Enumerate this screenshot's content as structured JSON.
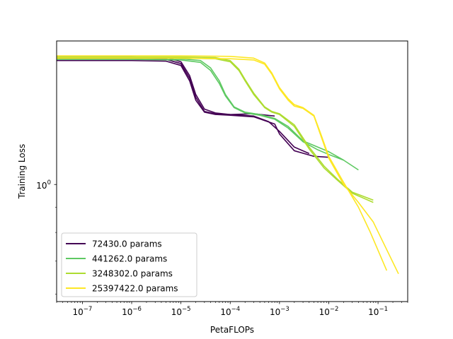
{
  "chart_data": {
    "type": "line",
    "xlabel": "PetaFLOPs",
    "ylabel": "Training Loss",
    "xscale": "log",
    "yscale": "log",
    "xlim": [
      3e-08,
      0.4
    ],
    "ylim": [
      0.58,
      1.95
    ],
    "grid": false,
    "legend_position": "lower-left",
    "x_ticks": [
      {
        "value": 1e-07,
        "base": "10",
        "exp": "−7"
      },
      {
        "value": 1e-06,
        "base": "10",
        "exp": "−6"
      },
      {
        "value": 1e-05,
        "base": "10",
        "exp": "−5"
      },
      {
        "value": 0.0001,
        "base": "10",
        "exp": "−4"
      },
      {
        "value": 0.001,
        "base": "10",
        "exp": "−3"
      },
      {
        "value": 0.01,
        "base": "10",
        "exp": "−2"
      },
      {
        "value": 0.1,
        "base": "10",
        "exp": "−1"
      }
    ],
    "y_ticks": [
      {
        "value": 1.0,
        "base": "10",
        "exp": "0"
      }
    ],
    "series": [
      {
        "name": "72430.0 params",
        "color": "#440154",
        "runs": [
          {
            "x": [
              3e-08,
              1e-06,
              5e-06,
              1e-05,
              1.5e-05,
              2e-05,
              3e-05,
              5e-05,
              0.0001,
              0.0003,
              0.0008,
              0.001,
              0.002,
              0.005,
              0.01
            ],
            "y": [
              1.78,
              1.78,
              1.775,
              1.74,
              1.62,
              1.48,
              1.4,
              1.385,
              1.38,
              1.37,
              1.325,
              1.265,
              1.17,
              1.14,
              1.135
            ]
          },
          {
            "x": [
              3e-08,
              1e-06,
              5e-06,
              1e-05,
              1.5e-05,
              2e-05,
              3e-05,
              5e-05,
              0.0001,
              0.0003,
              0.0008
            ],
            "y": [
              1.795,
              1.795,
              1.79,
              1.755,
              1.64,
              1.5,
              1.405,
              1.39,
              1.385,
              1.39,
              1.375
            ]
          },
          {
            "x": [
              3e-08,
              1e-06,
              5e-06,
              1e-05,
              1.5e-05,
              2e-05,
              3e-05,
              5e-05,
              0.0001,
              0.0003,
              0.0006,
              0.001,
              0.002,
              0.004
            ],
            "y": [
              1.81,
              1.81,
              1.805,
              1.77,
              1.66,
              1.52,
              1.42,
              1.395,
              1.385,
              1.375,
              1.34,
              1.28,
              1.19,
              1.155
            ]
          }
        ]
      },
      {
        "name": "441262.0 params",
        "color": "#5ec962",
        "runs": [
          {
            "x": [
              3e-08,
              1e-06,
              1e-05,
              2.5e-05,
              4e-05,
              6e-05,
              8e-05,
              0.00012,
              0.0002,
              0.0004,
              0.0008,
              0.0015,
              0.003,
              0.006,
              0.01,
              0.02
            ],
            "y": [
              1.79,
              1.79,
              1.785,
              1.765,
              1.7,
              1.6,
              1.51,
              1.43,
              1.395,
              1.38,
              1.355,
              1.3,
              1.22,
              1.175,
              1.15,
              1.12
            ]
          },
          {
            "x": [
              3e-08,
              1e-06,
              1e-05,
              2.5e-05,
              4e-05,
              6e-05,
              8e-05,
              0.00012,
              0.0002,
              0.0004,
              0.0008,
              0.0015,
              0.003,
              0.01,
              0.02,
              0.04
            ],
            "y": [
              1.8,
              1.8,
              1.795,
              1.78,
              1.72,
              1.62,
              1.52,
              1.435,
              1.4,
              1.385,
              1.36,
              1.31,
              1.225,
              1.165,
              1.12,
              1.07
            ]
          }
        ]
      },
      {
        "name": "3248302.0 params",
        "color": "#addc30",
        "runs": [
          {
            "x": [
              3e-08,
              1e-06,
              1e-05,
              5e-05,
              0.0001,
              0.00015,
              0.0002,
              0.0003,
              0.0005,
              0.0007,
              0.001,
              0.002,
              0.004,
              0.008,
              0.015,
              0.03,
              0.08
            ],
            "y": [
              1.8,
              1.8,
              1.8,
              1.795,
              1.77,
              1.7,
              1.62,
              1.52,
              1.43,
              1.4,
              1.385,
              1.31,
              1.18,
              1.08,
              1.02,
              0.96,
              0.92
            ]
          },
          {
            "x": [
              3e-08,
              1e-06,
              1e-05,
              5e-05,
              0.0001,
              0.00015,
              0.0002,
              0.0003,
              0.0005,
              0.0007,
              0.001,
              0.002,
              0.004,
              0.008,
              0.015,
              0.03,
              0.08
            ],
            "y": [
              1.81,
              1.81,
              1.81,
              1.805,
              1.78,
              1.71,
              1.63,
              1.53,
              1.435,
              1.405,
              1.39,
              1.32,
              1.19,
              1.09,
              1.025,
              0.965,
              0.93
            ]
          }
        ]
      },
      {
        "name": "25397422.0 params",
        "color": "#fde725",
        "runs": [
          {
            "x": [
              3e-08,
              1e-06,
              1e-05,
              0.0001,
              0.0003,
              0.0005,
              0.0007,
              0.001,
              0.0015,
              0.002,
              0.003,
              0.005,
              0.007,
              0.01,
              0.02,
              0.04,
              0.07,
              0.15
            ],
            "y": [
              1.82,
              1.82,
              1.82,
              1.815,
              1.8,
              1.76,
              1.68,
              1.57,
              1.49,
              1.45,
              1.43,
              1.38,
              1.26,
              1.14,
              1.01,
              0.9,
              0.8,
              0.67
            ]
          },
          {
            "x": [
              3e-08,
              1e-06,
              1e-05,
              0.0001,
              0.0003,
              0.0005,
              0.0007,
              0.001,
              0.0015,
              0.002,
              0.003,
              0.005,
              0.007,
              0.01,
              0.02,
              0.04,
              0.08,
              0.26
            ],
            "y": [
              1.8,
              1.8,
              1.8,
              1.795,
              1.785,
              1.75,
              1.67,
              1.56,
              1.48,
              1.44,
              1.425,
              1.375,
              1.25,
              1.13,
              1.0,
              0.92,
              0.84,
              0.66
            ]
          }
        ]
      }
    ]
  }
}
